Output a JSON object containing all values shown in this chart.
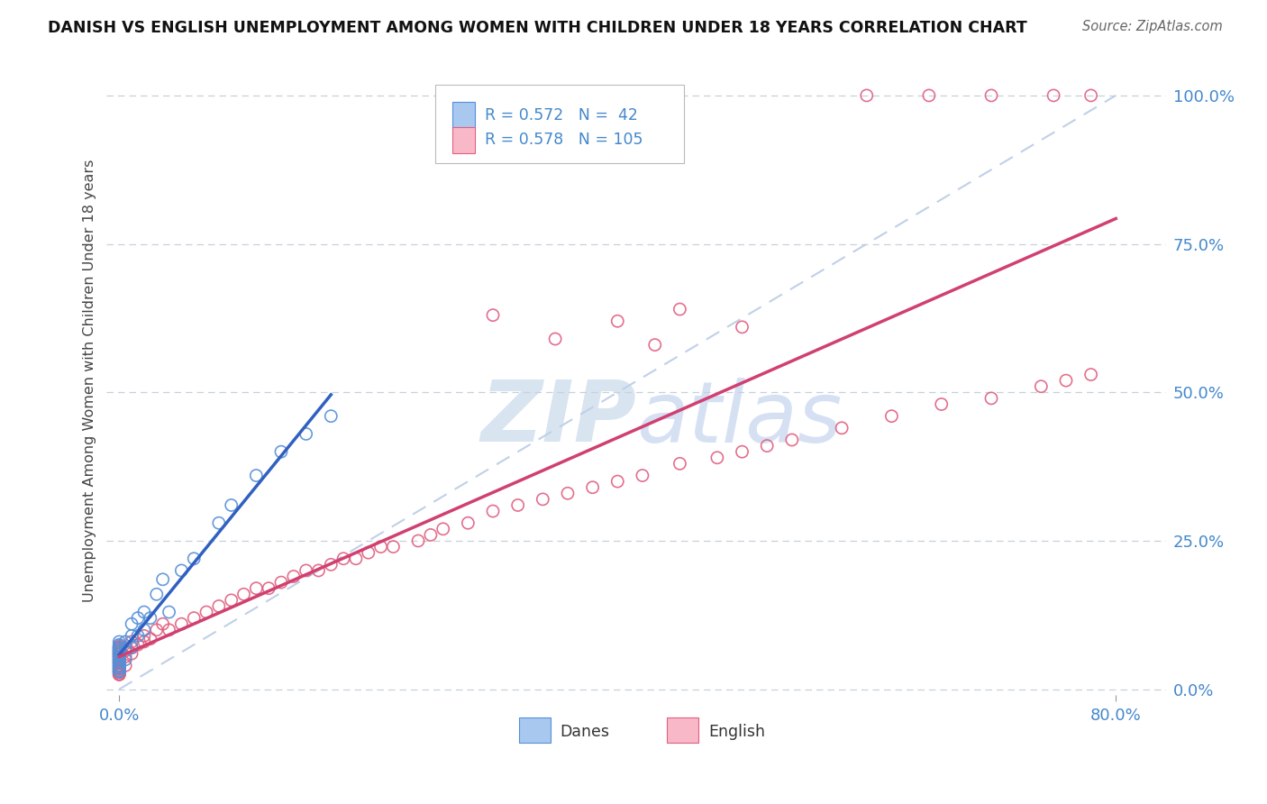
{
  "title": "DANISH VS ENGLISH UNEMPLOYMENT AMONG WOMEN WITH CHILDREN UNDER 18 YEARS CORRELATION CHART",
  "source": "Source: ZipAtlas.com",
  "ylabel": "Unemployment Among Women with Children Under 18 years",
  "danes_color": "#A8C8F0",
  "danes_edge_color": "#5590D8",
  "english_color": "#F8B8C8",
  "english_edge_color": "#E06080",
  "danes_line_color": "#3060C0",
  "english_line_color": "#D04070",
  "diag_line_color": "#C0D0E8",
  "watermark_color": "#D8E4F0",
  "tick_color": "#4488CC",
  "title_color": "#111111",
  "danes_x": [
    0.0,
    0.0,
    0.0,
    0.0,
    0.0,
    0.0,
    0.0,
    0.0,
    0.0,
    0.0,
    0.0,
    0.0,
    0.0,
    0.0,
    0.0,
    0.0,
    0.0,
    0.0,
    0.0,
    0.0,
    0.005,
    0.005,
    0.005,
    0.01,
    0.01,
    0.01,
    0.015,
    0.015,
    0.02,
    0.02,
    0.025,
    0.03,
    0.035,
    0.04,
    0.05,
    0.06,
    0.08,
    0.09,
    0.11,
    0.13,
    0.15,
    0.17
  ],
  "danes_y": [
    0.03,
    0.035,
    0.04,
    0.045,
    0.05,
    0.055,
    0.06,
    0.065,
    0.07,
    0.075,
    0.03,
    0.038,
    0.045,
    0.055,
    0.06,
    0.065,
    0.07,
    0.08,
    0.05,
    0.06,
    0.05,
    0.07,
    0.08,
    0.07,
    0.09,
    0.11,
    0.09,
    0.12,
    0.1,
    0.13,
    0.12,
    0.16,
    0.185,
    0.13,
    0.2,
    0.22,
    0.28,
    0.31,
    0.36,
    0.4,
    0.43,
    0.46
  ],
  "english_x": [
    0.0,
    0.0,
    0.0,
    0.0,
    0.0,
    0.0,
    0.0,
    0.0,
    0.0,
    0.0,
    0.0,
    0.0,
    0.0,
    0.0,
    0.0,
    0.0,
    0.0,
    0.0,
    0.0,
    0.0,
    0.0,
    0.0,
    0.0,
    0.0,
    0.0,
    0.0,
    0.0,
    0.0,
    0.0,
    0.0,
    0.0,
    0.0,
    0.0,
    0.0,
    0.0,
    0.0,
    0.0,
    0.0,
    0.0,
    0.0,
    0.005,
    0.005,
    0.005,
    0.01,
    0.01,
    0.01,
    0.015,
    0.02,
    0.02,
    0.025,
    0.03,
    0.035,
    0.04,
    0.05,
    0.06,
    0.07,
    0.08,
    0.09,
    0.1,
    0.11,
    0.12,
    0.13,
    0.14,
    0.15,
    0.16,
    0.17,
    0.18,
    0.19,
    0.2,
    0.21,
    0.22,
    0.24,
    0.25,
    0.26,
    0.28,
    0.3,
    0.32,
    0.34,
    0.36,
    0.38,
    0.4,
    0.42,
    0.45,
    0.48,
    0.5,
    0.52,
    0.54,
    0.58,
    0.62,
    0.66,
    0.7,
    0.74,
    0.76,
    0.78,
    0.3,
    0.35,
    0.4,
    0.45,
    0.5,
    0.43,
    0.6,
    0.65,
    0.7,
    0.75,
    0.78
  ],
  "english_y": [
    0.025,
    0.03,
    0.035,
    0.04,
    0.045,
    0.05,
    0.055,
    0.06,
    0.065,
    0.07,
    0.028,
    0.033,
    0.038,
    0.043,
    0.048,
    0.053,
    0.058,
    0.063,
    0.068,
    0.073,
    0.025,
    0.03,
    0.035,
    0.04,
    0.045,
    0.05,
    0.055,
    0.06,
    0.065,
    0.07,
    0.025,
    0.03,
    0.035,
    0.04,
    0.045,
    0.05,
    0.055,
    0.06,
    0.065,
    0.07,
    0.04,
    0.055,
    0.065,
    0.06,
    0.07,
    0.08,
    0.075,
    0.08,
    0.09,
    0.085,
    0.1,
    0.11,
    0.1,
    0.11,
    0.12,
    0.13,
    0.14,
    0.15,
    0.16,
    0.17,
    0.17,
    0.18,
    0.19,
    0.2,
    0.2,
    0.21,
    0.22,
    0.22,
    0.23,
    0.24,
    0.24,
    0.25,
    0.26,
    0.27,
    0.28,
    0.3,
    0.31,
    0.32,
    0.33,
    0.34,
    0.35,
    0.36,
    0.38,
    0.39,
    0.4,
    0.41,
    0.42,
    0.44,
    0.46,
    0.48,
    0.49,
    0.51,
    0.52,
    0.53,
    0.63,
    0.59,
    0.62,
    0.64,
    0.61,
    0.58,
    1.0,
    1.0,
    1.0,
    1.0,
    1.0
  ],
  "xlim_min": -0.01,
  "xlim_max": 0.84,
  "ylim_min": -0.01,
  "ylim_max": 1.05,
  "xticks": [
    0.0,
    0.8
  ],
  "xtick_labels": [
    "0.0%",
    "80.0%"
  ],
  "yticks": [
    0.0,
    0.25,
    0.5,
    0.75,
    1.0
  ],
  "ytick_labels": [
    "0.0%",
    "25.0%",
    "50.0%",
    "75.0%",
    "100.0%"
  ],
  "legend_danes_r": "R = 0.572",
  "legend_danes_n": "N =  42",
  "legend_english_r": "R = 0.578",
  "legend_english_n": "N = 105"
}
